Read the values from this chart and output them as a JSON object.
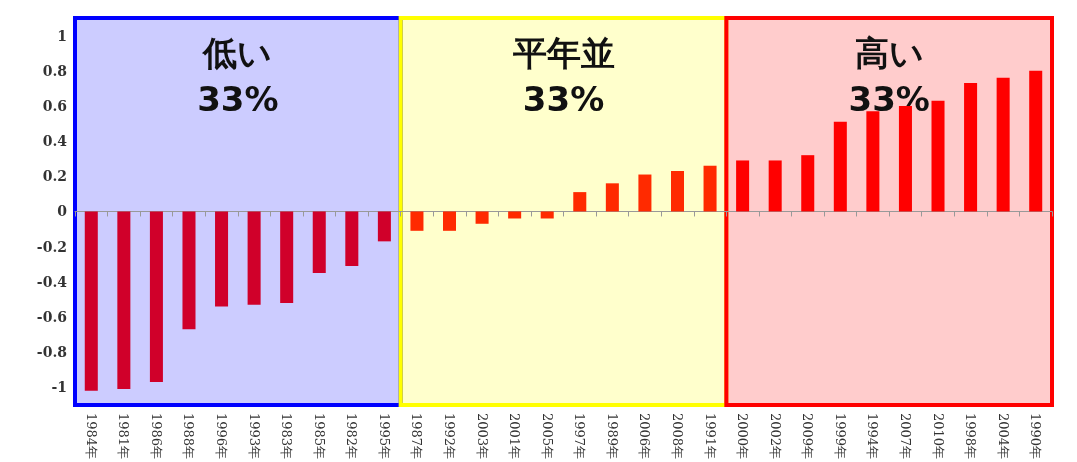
{
  "chart_data": {
    "type": "bar",
    "categories": [
      "1984年",
      "1981年",
      "1986年",
      "1988年",
      "1996年",
      "1993年",
      "1983年",
      "1985年",
      "1982年",
      "1995年",
      "1987年",
      "1992年",
      "2003年",
      "2001年",
      "2005年",
      "1997年",
      "1989年",
      "2006年",
      "2008年",
      "1991年",
      "2000年",
      "2002年",
      "2009年",
      "1999年",
      "1994年",
      "2007年",
      "2010年",
      "1998年",
      "2004年",
      "1990年"
    ],
    "values": [
      -1.02,
      -1.01,
      -0.97,
      -0.67,
      -0.54,
      -0.53,
      -0.52,
      -0.35,
      -0.31,
      -0.17,
      -0.11,
      -0.11,
      -0.07,
      -0.04,
      -0.04,
      0.11,
      0.16,
      0.21,
      0.23,
      0.26,
      0.29,
      0.29,
      0.32,
      0.51,
      0.57,
      0.6,
      0.63,
      0.73,
      0.76,
      0.8
    ],
    "colors": [
      "#d0002a",
      "#d0002a",
      "#d0002a",
      "#d0002a",
      "#d0002a",
      "#d0002a",
      "#d0002a",
      "#d0002a",
      "#d0002a",
      "#d0002a",
      "#ff2a00",
      "#ff2a00",
      "#ff2a00",
      "#ff2a00",
      "#ff2a00",
      "#ff2a00",
      "#ff2a00",
      "#ff2a00",
      "#ff2a00",
      "#ff2a00",
      "#ff0000",
      "#ff0000",
      "#ff0000",
      "#ff0000",
      "#ff0000",
      "#ff0000",
      "#ff0000",
      "#ff0000",
      "#ff0000",
      "#ff0000"
    ],
    "ylim": [
      -1.1,
      1.1
    ],
    "yticks": [
      -1,
      -0.8,
      -0.6,
      -0.4,
      -0.2,
      0,
      0.2,
      0.4,
      0.6,
      0.8,
      1
    ],
    "bands": [
      {
        "axis": "x",
        "from": "1984年",
        "to": "1995年",
        "label": "低い\n33%",
        "color": "#0000ff"
      },
      {
        "axis": "x",
        "from": "1987年",
        "to": "1991年",
        "label": "平年並\n33%",
        "color": "#ffff00"
      },
      {
        "axis": "x",
        "from": "2000年",
        "to": "1990年",
        "label": "高い\n33%",
        "color": "#ff0000"
      }
    ]
  }
}
